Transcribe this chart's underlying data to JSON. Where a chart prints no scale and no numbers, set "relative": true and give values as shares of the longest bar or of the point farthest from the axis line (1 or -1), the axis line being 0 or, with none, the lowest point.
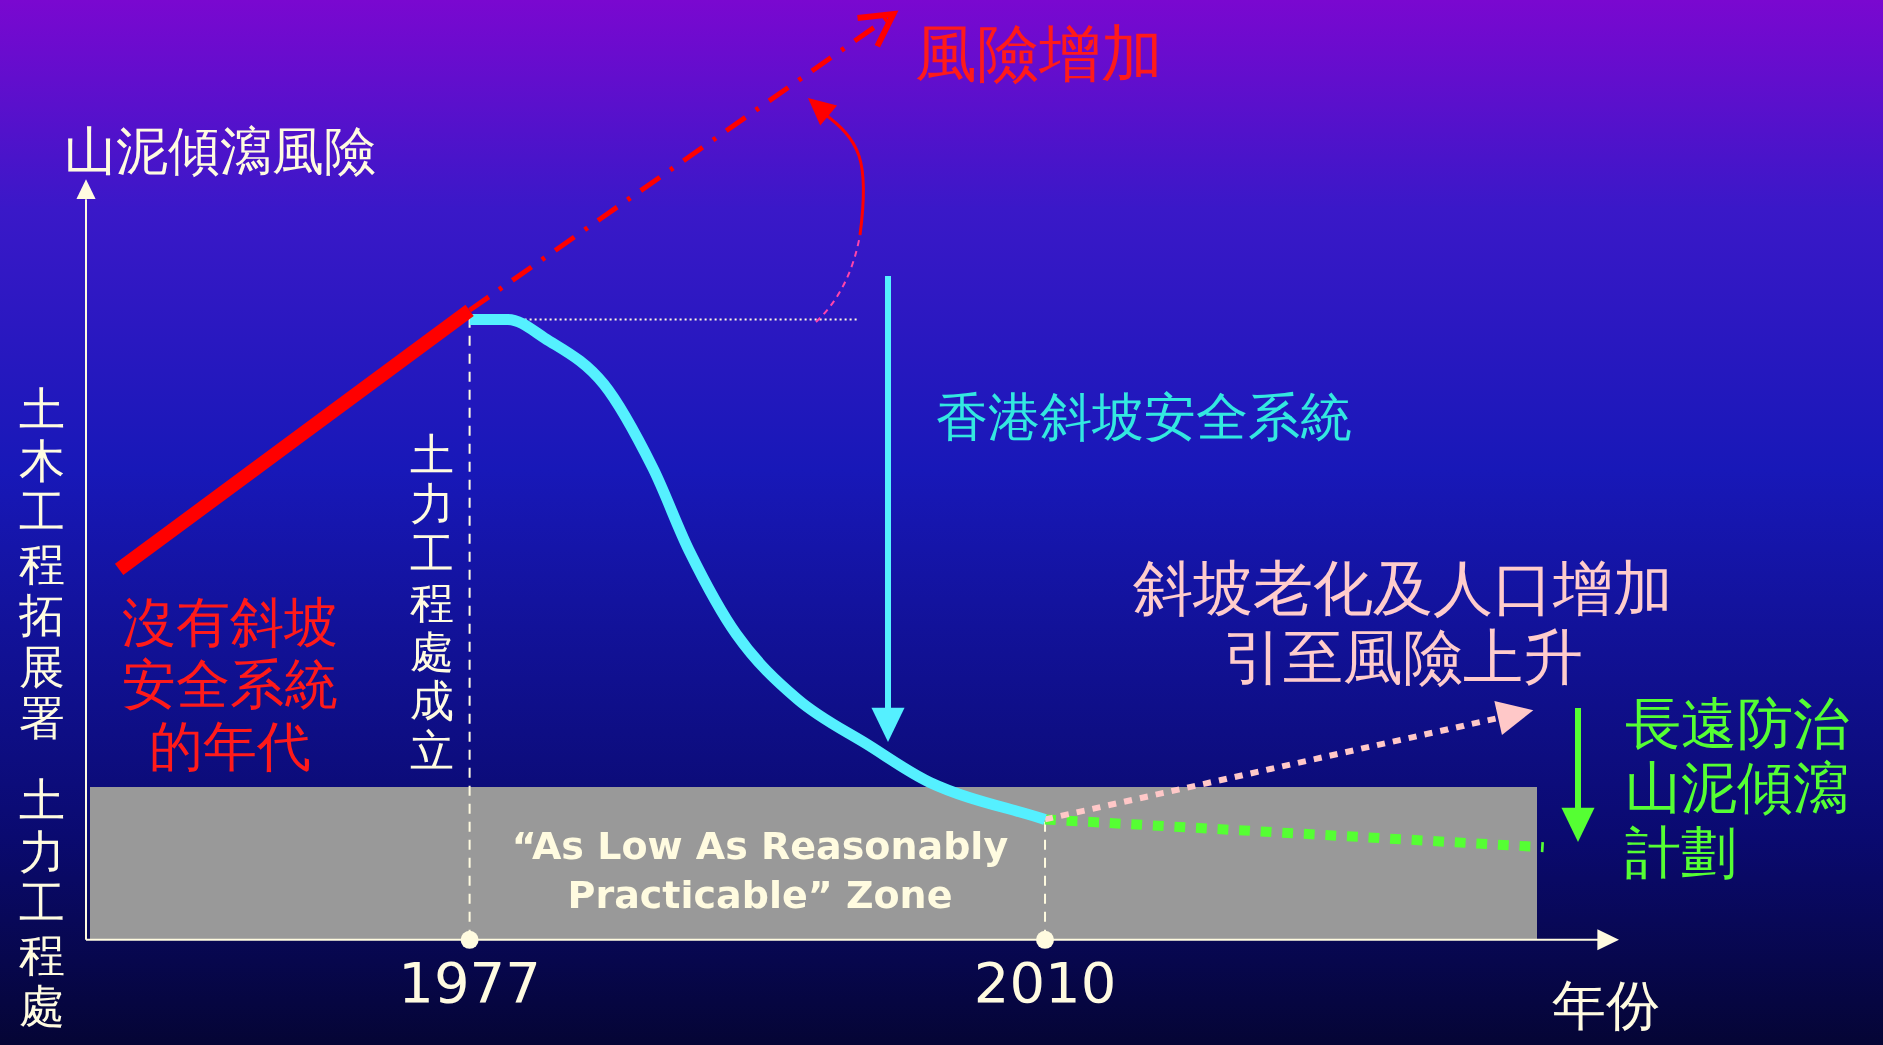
{
  "chart_data": {
    "type": "line",
    "relative": true,
    "ylabel": "山泥傾瀉風險",
    "xlabel": "年份",
    "xlim": [
      1955,
      2042
    ],
    "xticks": [
      1977,
      2010
    ],
    "tick_labels": "x",
    "grid": false,
    "legend": false,
    "marker": "none",
    "series": [
      {
        "color": "#ff0000",
        "line_style": "solid",
        "x": [
          1956.9,
          1977
        ],
        "values": [
          0.4,
          0.68
        ]
      },
      {
        "color": "#ff0000",
        "line_style": "dashed",
        "x": [
          1977,
          2001.3
        ],
        "values": [
          0.68,
          1.0
        ]
      },
      {
        "color": "#55f0ff",
        "line_style": "solid",
        "x": [
          1977,
          1979.2,
          1981.3,
          1984.7,
          1987.5,
          1989.6,
          1992.3,
          1995.8,
          1999.9,
          2003.4,
          2010
        ],
        "values": [
          0.67,
          0.67,
          0.65,
          0.6,
          0.51,
          0.42,
          0.33,
          0.26,
          0.21,
          0.17,
          0.13
        ]
      },
      {
        "color": "#ffc8c8",
        "line_style": "dotted",
        "x": [
          2010,
          2036.1
        ],
        "values": [
          0.13,
          0.24
        ]
      },
      {
        "color": "#55ff33",
        "line_style": "dotted",
        "x": [
          2010,
          2038.6
        ],
        "values": [
          0.13,
          0.1
        ]
      }
    ],
    "bands": [
      {
        "axis": "y",
        "from": 0,
        "to": 0.165,
        "label": "“As Low As Reasonably Practicable” Zone",
        "color": "#999999"
      }
    ],
    "ref_lines": [
      {
        "axis": "x",
        "value": 1977,
        "label": "土力工程處成立"
      },
      {
        "axis": "x",
        "value": 2010
      },
      {
        "axis": "y",
        "value": 0.67,
        "line_style": "dotted"
      }
    ],
    "annotations": [
      {
        "text": "風險增加",
        "x": 2001.3,
        "y": 1.0
      },
      "香港斜坡安全系統",
      "沒有斜坡安全系統的年代",
      "斜坡老化及人口增加引至風險上升",
      "長遠防治山泥傾瀉計劃",
      "土木工程拓展署",
      "土力工程處"
    ]
  }
}
